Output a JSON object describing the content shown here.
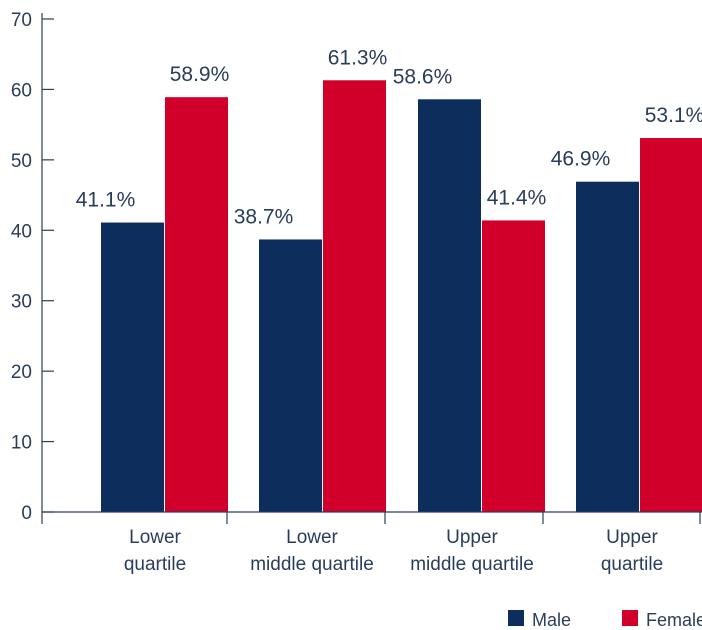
{
  "chart_data": {
    "type": "bar",
    "categories": [
      [
        "Lower",
        "quartile"
      ],
      [
        "Lower",
        "middle quartile"
      ],
      [
        "Upper",
        "middle quartile"
      ],
      [
        "Upper",
        "quartile"
      ]
    ],
    "series": [
      {
        "name": "Male",
        "color": "#0d2d5c",
        "values": [
          41.1,
          38.7,
          58.6,
          46.9
        ],
        "labels": [
          "41.1%",
          "38.7%",
          "58.6%",
          "46.9%"
        ]
      },
      {
        "name": "Female",
        "color": "#d0002a",
        "values": [
          58.9,
          61.3,
          41.4,
          53.1
        ],
        "labels": [
          "58.9%",
          "61.3%",
          "41.4%",
          "53.1%"
        ]
      }
    ],
    "yticks": [
      "0",
      "10",
      "20",
      "30",
      "40",
      "50",
      "60",
      "70"
    ],
    "ylim": [
      0,
      70
    ],
    "grid": false,
    "legend_position": "bottom-right"
  }
}
